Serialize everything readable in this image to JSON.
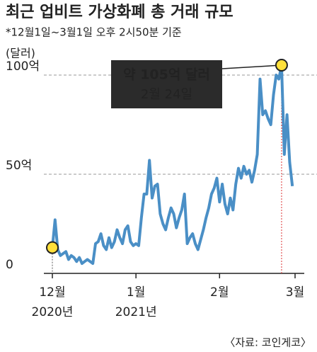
{
  "chart_data": {
    "type": "line",
    "title": "최근 업비트 가상화폐 총 거래 규모",
    "subtitle": "*12월1일~3월1일 오후 2시50분 기준",
    "y_unit": "(달러)",
    "categories": [
      "12월\n2020년",
      null,
      null,
      null,
      null,
      null,
      null,
      null,
      null,
      null,
      null,
      null,
      null,
      null,
      null,
      null,
      null,
      null,
      null,
      null,
      null,
      null,
      null,
      null,
      null,
      null,
      null,
      null,
      null,
      null,
      null,
      "1월\n2021년",
      null,
      null,
      null,
      null,
      null,
      null,
      null,
      null,
      null,
      null,
      null,
      null,
      null,
      null,
      null,
      null,
      null,
      null,
      null,
      null,
      null,
      null,
      null,
      null,
      null,
      null,
      null,
      null,
      null,
      null,
      "2월",
      null,
      null,
      null,
      null,
      null,
      null,
      null,
      null,
      null,
      null,
      null,
      null,
      null,
      null,
      null,
      null,
      null,
      null,
      null,
      null,
      null,
      null,
      null,
      null,
      null,
      null,
      null,
      "3월"
    ],
    "values": [
      13,
      27,
      12,
      9,
      10,
      11,
      7,
      9,
      8,
      6,
      8,
      5,
      6,
      7,
      6,
      5,
      15,
      16,
      20,
      14,
      12,
      18,
      13,
      16,
      22,
      18,
      15,
      22,
      24,
      16,
      14,
      15,
      14,
      28,
      40,
      40,
      57,
      38,
      44,
      45,
      30,
      25,
      22,
      28,
      33,
      30,
      23,
      28,
      32,
      40,
      15,
      18,
      20,
      15,
      12,
      17,
      22,
      28,
      33,
      40,
      43,
      48,
      36,
      45,
      35,
      30,
      38,
      32,
      45,
      53,
      48,
      54,
      50,
      52,
      46,
      52,
      60,
      98,
      80,
      82,
      78,
      75,
      90,
      100,
      98,
      105,
      60,
      80,
      56,
      44,
      null
    ],
    "color": "#4a8fc6",
    "ylim": [
      0,
      110
    ],
    "yticks": [
      0,
      {
        "value": 50,
        "label": "50억"
      },
      {
        "value": 100,
        "label": "100억"
      }
    ],
    "grid": true,
    "annotation": {
      "text": "약 105억 달러",
      "date": "2월 24일"
    },
    "source": "〈자료: 코인게코〉"
  }
}
